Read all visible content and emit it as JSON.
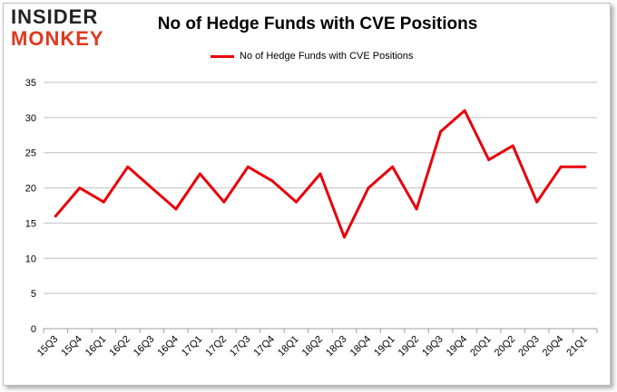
{
  "logo": {
    "line1": "INSIDER",
    "line2": "MONKEY"
  },
  "chart_data": {
    "type": "line",
    "title": "No of Hedge Funds with CVE Positions",
    "xlabel": "",
    "ylabel": "",
    "ylim": [
      0,
      35
    ],
    "yticks": [
      0,
      5,
      10,
      15,
      20,
      25,
      30,
      35
    ],
    "grid": true,
    "legend": "top",
    "categories": [
      "15Q3",
      "15Q4",
      "16Q1",
      "16Q2",
      "16Q3",
      "16Q4",
      "17Q1",
      "17Q2",
      "17Q3",
      "17Q4",
      "18Q1",
      "18Q2",
      "18Q3",
      "18Q4",
      "19Q1",
      "19Q2",
      "19Q3",
      "19Q4",
      "20Q1",
      "20Q2",
      "20Q3",
      "20Q4",
      "21Q1"
    ],
    "series": [
      {
        "name": "No of Hedge Funds with CVE Positions",
        "color": "#e8000b",
        "values": [
          16,
          20,
          18,
          23,
          20,
          17,
          22,
          18,
          23,
          21,
          18,
          22,
          13,
          20,
          23,
          17,
          28,
          31,
          24,
          26,
          18,
          23,
          23
        ]
      }
    ]
  }
}
